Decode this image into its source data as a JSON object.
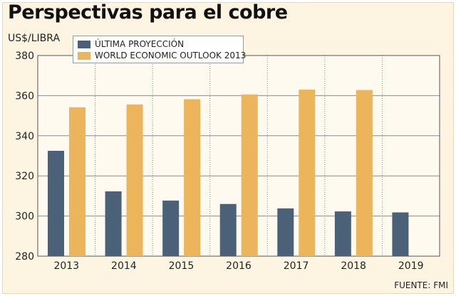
{
  "chart_data": {
    "type": "bar",
    "title": "Perspectivas para el cobre",
    "ylabel": "US$/LIBRA",
    "xlabel": "",
    "source": "FUENTE: FMI",
    "categories": [
      "2013",
      "2014",
      "2015",
      "2016",
      "2017",
      "2018",
      "2019"
    ],
    "series": [
      {
        "name": "ÚLTIMA PROYECCIÓN",
        "color": "#4a6177",
        "values": [
          332.5,
          312.3,
          307.7,
          306.0,
          303.8,
          302.3,
          301.8
        ]
      },
      {
        "name": "WORLD ECONOMIC OUTLOOK 2013",
        "color": "#ecb55c",
        "values": [
          354.2,
          355.6,
          358.2,
          360.6,
          363.0,
          362.8,
          null
        ]
      }
    ],
    "ylim": [
      280,
      380
    ],
    "yticks": [
      "280",
      "300",
      "320",
      "340",
      "360",
      "380"
    ],
    "legend_position": "top-left",
    "grid": true
  }
}
